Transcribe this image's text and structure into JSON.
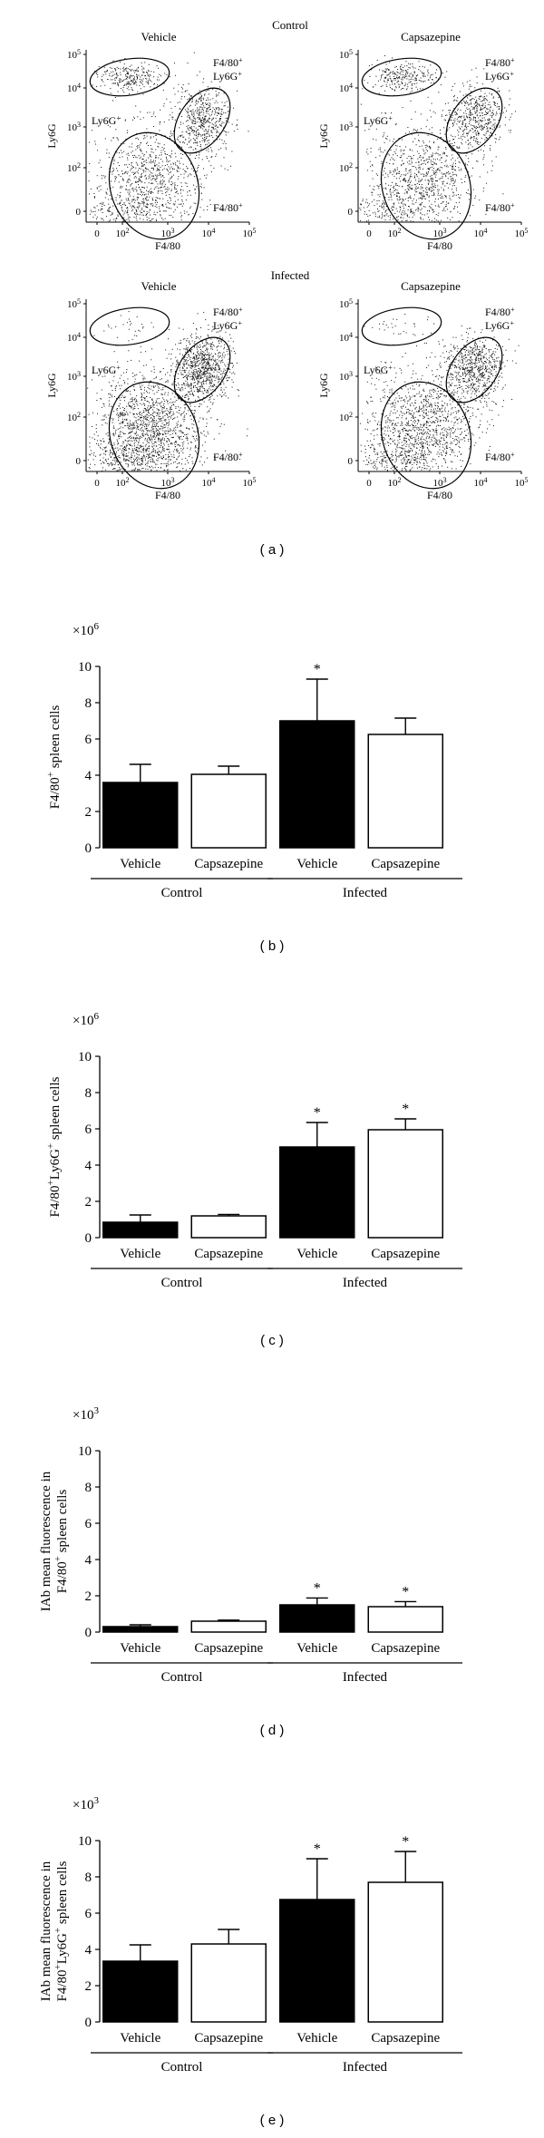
{
  "figure": {
    "panel_labels": [
      "( a )",
      "( b )",
      "( c )",
      "( d )",
      "( e )"
    ]
  },
  "flow": {
    "row_titles": [
      "Control",
      "Infected"
    ],
    "plots": [
      {
        "title": "Vehicle",
        "row": 0,
        "col": 0,
        "upper_density": 1.0,
        "lr_density": 1.0
      },
      {
        "title": "Capsazepine",
        "row": 0,
        "col": 1,
        "upper_density": 1.0,
        "lr_density": 1.0
      },
      {
        "title": "Vehicle",
        "row": 1,
        "col": 0,
        "upper_density": 0.12,
        "lr_density": 1.6
      },
      {
        "title": "Capsazepine",
        "row": 1,
        "col": 1,
        "upper_density": 0.12,
        "lr_density": 1.3
      }
    ],
    "x_label": "F4/80",
    "y_label": "Ly6G",
    "x_ticks": [
      "0",
      "10",
      "10",
      "10",
      "10"
    ],
    "x_exps": [
      "",
      "2",
      "3",
      "4",
      "5"
    ],
    "y_ticks": [
      "0",
      "10",
      "10",
      "10",
      "10"
    ],
    "y_exps": [
      "",
      "2",
      "3",
      "4",
      "5"
    ],
    "gate_ly6g": "Ly6G",
    "gate_f480": "F4/80",
    "gate_sup": "+"
  },
  "chart_data": [
    {
      "type": "bar",
      "panel": "b",
      "ylabel": "F4/80+ spleen cells",
      "ylabel_parts": [
        "F4/80",
        "+",
        " spleen cells"
      ],
      "multiplier": "×10",
      "multiplier_exp": "6",
      "ylim": [
        0,
        10
      ],
      "yticks": [
        "0",
        "2",
        "4",
        "6",
        "8",
        "10"
      ],
      "categories": [
        "Vehicle",
        "Capsazepine",
        "Vehicle",
        "Capsazepine"
      ],
      "groups": [
        "Control",
        "Infected"
      ],
      "values": [
        3.6,
        4.05,
        7.0,
        6.25
      ],
      "errors": [
        1.0,
        0.45,
        2.3,
        0.9
      ],
      "fills": [
        "#000000",
        "#ffffff",
        "#000000",
        "#ffffff"
      ],
      "significance": [
        "",
        "",
        "*",
        ""
      ]
    },
    {
      "type": "bar",
      "panel": "c",
      "ylabel": "F4/80+Ly6G+ spleen cells",
      "ylabel_parts": [
        "F4/80",
        "+",
        "Ly6G",
        "+",
        " spleen cells"
      ],
      "multiplier": "×10",
      "multiplier_exp": "6",
      "ylim": [
        0,
        10
      ],
      "yticks": [
        "0",
        "2",
        "4",
        "6",
        "8",
        "10"
      ],
      "categories": [
        "Vehicle",
        "Capsazepine",
        "Vehicle",
        "Capsazepine"
      ],
      "groups": [
        "Control",
        "Infected"
      ],
      "values": [
        0.85,
        1.2,
        5.0,
        5.95
      ],
      "errors": [
        0.4,
        0.08,
        1.35,
        0.6
      ],
      "fills": [
        "#000000",
        "#ffffff",
        "#000000",
        "#ffffff"
      ],
      "significance": [
        "",
        "",
        "*",
        "*"
      ]
    },
    {
      "type": "bar",
      "panel": "d",
      "ylabel": "IAb mean fluorescence in F4/80+ spleen cells",
      "ylabel_parts": [
        "IAb mean fluorescence in",
        "F4/80",
        "+",
        " spleen cells"
      ],
      "multiplier": "×10",
      "multiplier_exp": "3",
      "ylim": [
        0,
        10
      ],
      "yticks": [
        "0",
        "2",
        "4",
        "6",
        "8",
        "10"
      ],
      "categories": [
        "Vehicle",
        "Capsazepine",
        "Vehicle",
        "Capsazepine"
      ],
      "groups": [
        "Control",
        "Infected"
      ],
      "values": [
        0.3,
        0.6,
        1.5,
        1.4
      ],
      "errors": [
        0.1,
        0.06,
        0.38,
        0.28
      ],
      "fills": [
        "#000000",
        "#ffffff",
        "#000000",
        "#ffffff"
      ],
      "significance": [
        "",
        "",
        "*",
        "*"
      ]
    },
    {
      "type": "bar",
      "panel": "e",
      "ylabel": "IAb mean fluorescence in F4/80+Ly6G+ spleen cells",
      "ylabel_parts": [
        "IAb mean fluorescence in",
        "F4/80",
        "+",
        "Ly6G",
        "+",
        " spleen cells"
      ],
      "multiplier": "×10",
      "multiplier_exp": "3",
      "ylim": [
        0,
        10
      ],
      "yticks": [
        "0",
        "2",
        "4",
        "6",
        "8",
        "10"
      ],
      "categories": [
        "Vehicle",
        "Capsazepine",
        "Vehicle",
        "Capsazepine"
      ],
      "groups": [
        "Control",
        "Infected"
      ],
      "values": [
        3.35,
        4.3,
        6.75,
        7.7
      ],
      "errors": [
        0.9,
        0.8,
        2.25,
        1.7
      ],
      "fills": [
        "#000000",
        "#ffffff",
        "#000000",
        "#ffffff"
      ],
      "significance": [
        "",
        "",
        "*",
        "*"
      ]
    }
  ]
}
